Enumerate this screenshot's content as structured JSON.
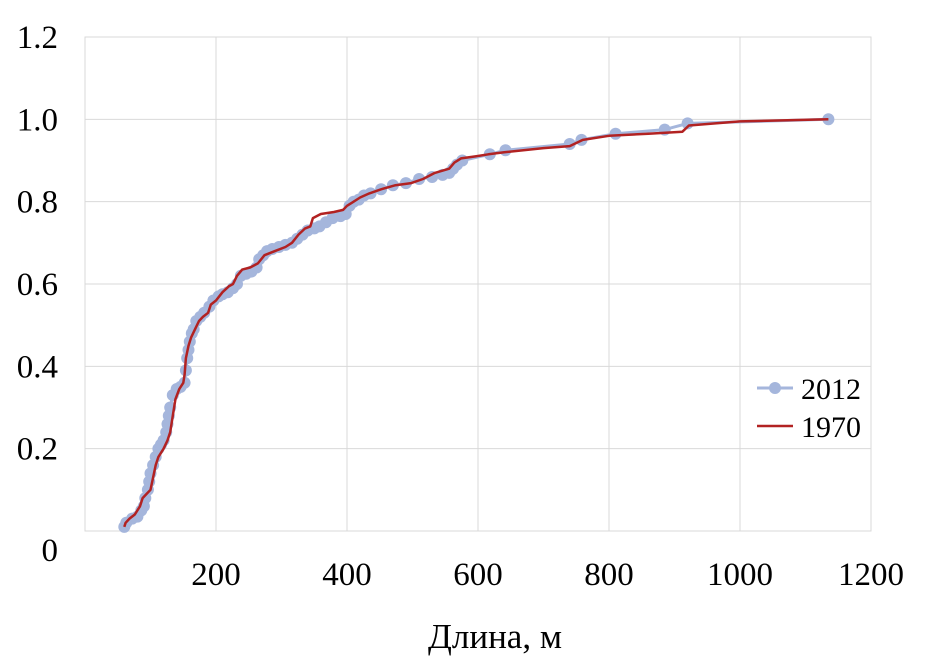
{
  "chart_data": {
    "type": "line",
    "title": "",
    "xlabel": "Длина, м",
    "ylabel": "",
    "xlim": [
      0,
      1200
    ],
    "ylim": [
      0,
      1.2
    ],
    "x_ticks": [
      "200",
      "400",
      "600",
      "800",
      "1000",
      "1200"
    ],
    "y_ticks": [
      "0",
      "0.2",
      "0.4",
      "0.6",
      "0.8",
      "1.0",
      "1.2"
    ],
    "grid": true,
    "legend_position": "right",
    "series": [
      {
        "name": "2012",
        "color": "#a5b6dc",
        "marker": "circle",
        "points": [
          [
            60,
            0.01
          ],
          [
            63,
            0.02
          ],
          [
            72,
            0.03
          ],
          [
            80,
            0.035
          ],
          [
            86,
            0.05
          ],
          [
            90,
            0.06
          ],
          [
            92,
            0.08
          ],
          [
            96,
            0.1
          ],
          [
            98,
            0.12
          ],
          [
            100,
            0.14
          ],
          [
            104,
            0.16
          ],
          [
            108,
            0.18
          ],
          [
            112,
            0.2
          ],
          [
            116,
            0.21
          ],
          [
            120,
            0.22
          ],
          [
            124,
            0.24
          ],
          [
            126,
            0.26
          ],
          [
            128,
            0.28
          ],
          [
            130,
            0.3
          ],
          [
            134,
            0.33
          ],
          [
            140,
            0.345
          ],
          [
            146,
            0.35
          ],
          [
            152,
            0.36
          ],
          [
            154,
            0.39
          ],
          [
            156,
            0.42
          ],
          [
            158,
            0.44
          ],
          [
            160,
            0.46
          ],
          [
            163,
            0.48
          ],
          [
            166,
            0.49
          ],
          [
            170,
            0.51
          ],
          [
            176,
            0.52
          ],
          [
            182,
            0.53
          ],
          [
            190,
            0.545
          ],
          [
            196,
            0.56
          ],
          [
            204,
            0.57
          ],
          [
            210,
            0.575
          ],
          [
            218,
            0.58
          ],
          [
            226,
            0.59
          ],
          [
            232,
            0.6
          ],
          [
            238,
            0.62
          ],
          [
            246,
            0.625
          ],
          [
            254,
            0.63
          ],
          [
            262,
            0.64
          ],
          [
            266,
            0.66
          ],
          [
            272,
            0.67
          ],
          [
            278,
            0.68
          ],
          [
            286,
            0.685
          ],
          [
            296,
            0.69
          ],
          [
            306,
            0.695
          ],
          [
            316,
            0.7
          ],
          [
            324,
            0.71
          ],
          [
            332,
            0.72
          ],
          [
            340,
            0.73
          ],
          [
            350,
            0.735
          ],
          [
            358,
            0.74
          ],
          [
            368,
            0.75
          ],
          [
            378,
            0.76
          ],
          [
            390,
            0.765
          ],
          [
            398,
            0.77
          ],
          [
            404,
            0.79
          ],
          [
            410,
            0.8
          ],
          [
            418,
            0.805
          ],
          [
            426,
            0.815
          ],
          [
            436,
            0.82
          ],
          [
            452,
            0.83
          ],
          [
            470,
            0.84
          ],
          [
            490,
            0.845
          ],
          [
            510,
            0.855
          ],
          [
            530,
            0.86
          ],
          [
            546,
            0.865
          ],
          [
            556,
            0.87
          ],
          [
            562,
            0.88
          ],
          [
            568,
            0.89
          ],
          [
            576,
            0.9
          ],
          [
            618,
            0.915
          ],
          [
            642,
            0.925
          ],
          [
            740,
            0.94
          ],
          [
            758,
            0.95
          ],
          [
            810,
            0.965
          ],
          [
            885,
            0.975
          ],
          [
            920,
            0.99
          ],
          [
            1135,
            1.0
          ]
        ]
      },
      {
        "name": "1970",
        "color": "#b22222",
        "marker": "none",
        "points": [
          [
            60,
            0.01
          ],
          [
            62,
            0.02
          ],
          [
            68,
            0.03
          ],
          [
            76,
            0.04
          ],
          [
            84,
            0.06
          ],
          [
            88,
            0.08
          ],
          [
            94,
            0.09
          ],
          [
            100,
            0.1
          ],
          [
            104,
            0.13
          ],
          [
            108,
            0.16
          ],
          [
            112,
            0.18
          ],
          [
            116,
            0.19
          ],
          [
            120,
            0.2
          ],
          [
            126,
            0.22
          ],
          [
            130,
            0.24
          ],
          [
            134,
            0.28
          ],
          [
            138,
            0.32
          ],
          [
            144,
            0.345
          ],
          [
            150,
            0.36
          ],
          [
            152,
            0.38
          ],
          [
            154,
            0.42
          ],
          [
            158,
            0.45
          ],
          [
            162,
            0.47
          ],
          [
            168,
            0.49
          ],
          [
            174,
            0.51
          ],
          [
            180,
            0.52
          ],
          [
            188,
            0.53
          ],
          [
            192,
            0.55
          ],
          [
            200,
            0.56
          ],
          [
            210,
            0.58
          ],
          [
            220,
            0.595
          ],
          [
            226,
            0.6
          ],
          [
            232,
            0.62
          ],
          [
            240,
            0.635
          ],
          [
            252,
            0.64
          ],
          [
            264,
            0.65
          ],
          [
            274,
            0.67
          ],
          [
            290,
            0.68
          ],
          [
            306,
            0.69
          ],
          [
            316,
            0.7
          ],
          [
            326,
            0.72
          ],
          [
            336,
            0.735
          ],
          [
            344,
            0.74
          ],
          [
            348,
            0.76
          ],
          [
            360,
            0.77
          ],
          [
            380,
            0.775
          ],
          [
            394,
            0.78
          ],
          [
            400,
            0.79
          ],
          [
            410,
            0.8
          ],
          [
            420,
            0.81
          ],
          [
            434,
            0.82
          ],
          [
            452,
            0.83
          ],
          [
            474,
            0.84
          ],
          [
            498,
            0.845
          ],
          [
            516,
            0.855
          ],
          [
            534,
            0.87
          ],
          [
            556,
            0.88
          ],
          [
            564,
            0.895
          ],
          [
            574,
            0.905
          ],
          [
            596,
            0.91
          ],
          [
            616,
            0.915
          ],
          [
            640,
            0.92
          ],
          [
            700,
            0.93
          ],
          [
            740,
            0.935
          ],
          [
            760,
            0.95
          ],
          [
            800,
            0.96
          ],
          [
            860,
            0.965
          ],
          [
            912,
            0.97
          ],
          [
            922,
            0.985
          ],
          [
            1000,
            0.995
          ],
          [
            1135,
            1.0
          ]
        ]
      }
    ]
  }
}
